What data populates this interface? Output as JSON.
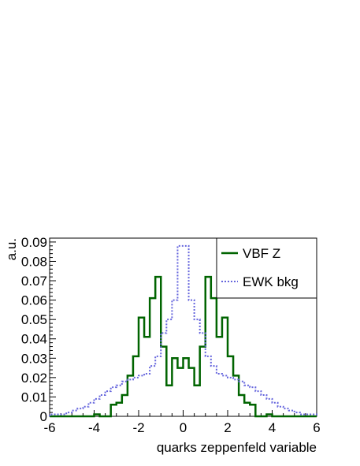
{
  "chart_data": {
    "type": "line",
    "style": "step-histogram",
    "title": "",
    "xlabel": "quarks zeppenfeld variable",
    "ylabel": "a.u.",
    "xlim": [
      -6,
      6
    ],
    "ylim": [
      0,
      0.092
    ],
    "x_ticks": [
      -6,
      -4,
      -2,
      0,
      2,
      4,
      6
    ],
    "x_tick_labels": [
      "-6",
      "-4",
      "-2",
      "0",
      "2",
      "4",
      "6"
    ],
    "y_ticks": [
      0,
      0.01,
      0.02,
      0.03,
      0.04,
      0.05,
      0.06,
      0.07,
      0.08,
      0.09
    ],
    "y_tick_labels": [
      "0",
      "0.01",
      "0.02",
      "0.03",
      "0.04",
      "0.05",
      "0.06",
      "0.07",
      "0.08",
      "0.09"
    ],
    "grid": false,
    "legend_position": "top-right",
    "bin_edges": [
      -6,
      -5.75,
      -5.5,
      -5.25,
      -5,
      -4.75,
      -4.5,
      -4.25,
      -4,
      -3.75,
      -3.5,
      -3.25,
      -3,
      -2.75,
      -2.5,
      -2.25,
      -2,
      -1.75,
      -1.5,
      -1.25,
      -1,
      -0.75,
      -0.5,
      -0.25,
      0,
      0.25,
      0.5,
      0.75,
      1,
      1.25,
      1.5,
      1.75,
      2,
      2.25,
      2.5,
      2.75,
      3,
      3.25,
      3.5,
      3.75,
      4,
      4.25,
      4.5,
      4.75,
      5,
      5.25,
      5.5,
      5.75,
      6
    ],
    "series": [
      {
        "name": "VBF Z",
        "color": "#006400",
        "line": "solid",
        "values": [
          0,
          0,
          0,
          0,
          0,
          0,
          0,
          0,
          0.001,
          0,
          0,
          0.006,
          0.007,
          0.011,
          0.021,
          0.031,
          0.051,
          0.041,
          0.061,
          0.072,
          0.036,
          0.016,
          0.03,
          0.025,
          0.03,
          0.025,
          0.016,
          0.036,
          0.072,
          0.061,
          0.041,
          0.051,
          0.031,
          0.021,
          0.011,
          0.007,
          0.006,
          0,
          0,
          0.001,
          0,
          0,
          0,
          0,
          0,
          0,
          0,
          0
        ]
      },
      {
        "name": "EWK bkg",
        "color": "#6666dd",
        "line": "dotted",
        "values": [
          0.001,
          0.001,
          0.001,
          0.002,
          0.003,
          0.004,
          0.005,
          0.007,
          0.009,
          0.011,
          0.013,
          0.015,
          0.016,
          0.018,
          0.019,
          0.02,
          0.021,
          0.022,
          0.026,
          0.031,
          0.043,
          0.05,
          0.06,
          0.088,
          0.088,
          0.06,
          0.05,
          0.043,
          0.031,
          0.026,
          0.022,
          0.021,
          0.02,
          0.019,
          0.018,
          0.016,
          0.015,
          0.013,
          0.011,
          0.009,
          0.007,
          0.005,
          0.004,
          0.003,
          0.002,
          0.001,
          0.001,
          0.001
        ]
      }
    ]
  }
}
